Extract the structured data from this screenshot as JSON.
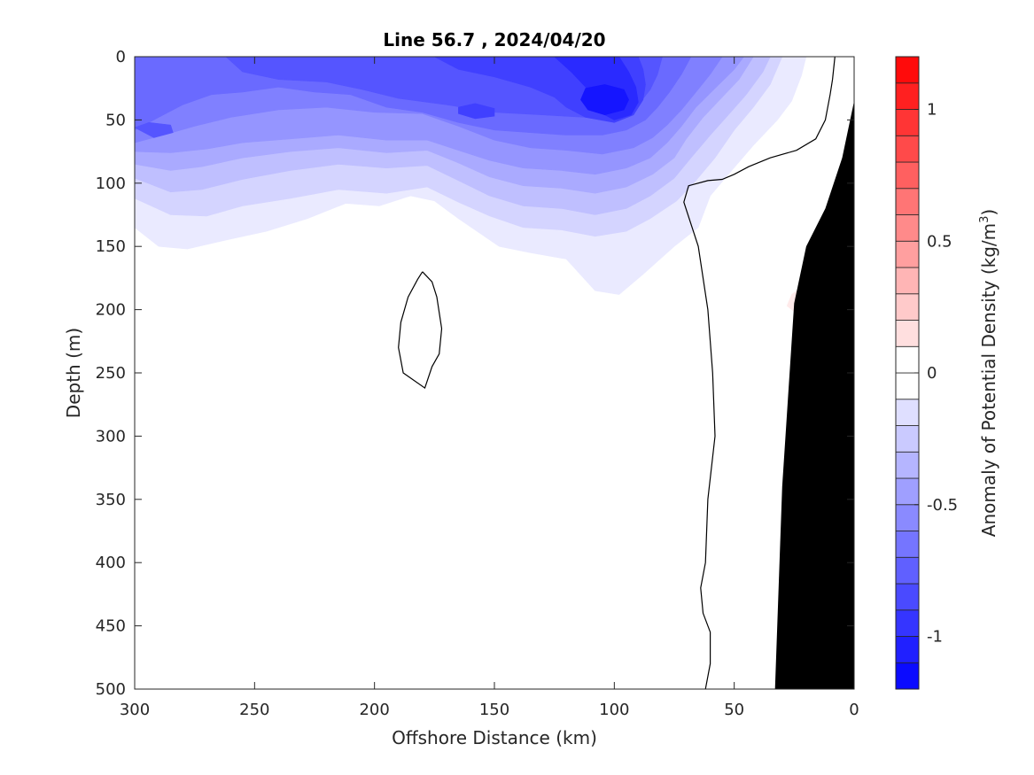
{
  "chart_data": {
    "type": "heatmap",
    "subtype": "filled-contour-section",
    "title": "Line 56.7 , 2024/04/20",
    "xlabel": "Offshore Distance (km)",
    "ylabel": "Depth (m)",
    "x_direction": "reversed",
    "y_direction": "reversed",
    "xlim": [
      0,
      300
    ],
    "ylim": [
      0,
      500
    ],
    "x_ticks": [
      300,
      250,
      200,
      150,
      100,
      50,
      0
    ],
    "y_ticks": [
      0,
      50,
      100,
      150,
      200,
      250,
      300,
      350,
      400,
      450,
      500
    ],
    "grid": false,
    "colorbar": {
      "label": "Anomaly of Potential Density (kg/m³)",
      "label_main": "Anomaly of Potential Density (kg/m",
      "label_sup": "3",
      "label_tail": ")",
      "range": [
        -1.2,
        1.2
      ],
      "step": 0.1,
      "tick_values": [
        1,
        0.5,
        0,
        -0.5,
        -1
      ],
      "tick_labels": [
        "1",
        "0.5",
        "0",
        "-0.5",
        "-1"
      ],
      "colormap": "blue-white-red"
    },
    "zero_contour_line": true,
    "bathymetry": {
      "color": "#000000",
      "points": [
        [
          0,
          35
        ],
        [
          5,
          80
        ],
        [
          12,
          120
        ],
        [
          20,
          150
        ],
        [
          25,
          195
        ],
        [
          30,
          340
        ],
        [
          33,
          500
        ],
        [
          0,
          500
        ]
      ]
    },
    "anomaly_levels": [
      {
        "level": -0.1,
        "outline": [
          [
            300,
            0
          ],
          [
            300,
            135
          ],
          [
            290,
            150
          ],
          [
            278,
            152
          ],
          [
            262,
            145
          ],
          [
            245,
            138
          ],
          [
            228,
            128
          ],
          [
            212,
            116
          ],
          [
            198,
            118
          ],
          [
            185,
            110
          ],
          [
            175,
            114
          ],
          [
            165,
            128
          ],
          [
            148,
            150
          ],
          [
            135,
            155
          ],
          [
            120,
            160
          ],
          [
            108,
            185
          ],
          [
            98,
            188
          ],
          [
            88,
            172
          ],
          [
            75,
            150
          ],
          [
            65,
            135
          ],
          [
            60,
            110
          ],
          [
            52,
            92
          ],
          [
            42,
            70
          ],
          [
            32,
            50
          ],
          [
            26,
            35
          ],
          [
            22,
            15
          ],
          [
            20,
            0
          ]
        ]
      },
      {
        "level": -0.2,
        "outline": [
          [
            300,
            0
          ],
          [
            300,
            112
          ],
          [
            285,
            125
          ],
          [
            270,
            126
          ],
          [
            255,
            118
          ],
          [
            235,
            112
          ],
          [
            215,
            105
          ],
          [
            195,
            108
          ],
          [
            178,
            103
          ],
          [
            165,
            115
          ],
          [
            152,
            126
          ],
          [
            138,
            135
          ],
          [
            122,
            137
          ],
          [
            108,
            142
          ],
          [
            95,
            138
          ],
          [
            85,
            128
          ],
          [
            74,
            114
          ],
          [
            66,
            98
          ],
          [
            58,
            80
          ],
          [
            50,
            58
          ],
          [
            42,
            40
          ],
          [
            35,
            22
          ],
          [
            30,
            0
          ]
        ]
      },
      {
        "level": -0.3,
        "outline": [
          [
            300,
            0
          ],
          [
            300,
            96
          ],
          [
            285,
            107
          ],
          [
            272,
            105
          ],
          [
            255,
            97
          ],
          [
            235,
            90
          ],
          [
            215,
            85
          ],
          [
            195,
            88
          ],
          [
            178,
            86
          ],
          [
            165,
            98
          ],
          [
            152,
            110
          ],
          [
            138,
            118
          ],
          [
            122,
            120
          ],
          [
            108,
            125
          ],
          [
            95,
            120
          ],
          [
            85,
            110
          ],
          [
            75,
            96
          ],
          [
            68,
            80
          ],
          [
            60,
            62
          ],
          [
            52,
            45
          ],
          [
            45,
            30
          ],
          [
            38,
            12
          ],
          [
            35,
            0
          ]
        ]
      },
      {
        "level": -0.4,
        "outline": [
          [
            300,
            0
          ],
          [
            300,
            85
          ],
          [
            285,
            90
          ],
          [
            272,
            87
          ],
          [
            255,
            80
          ],
          [
            235,
            75
          ],
          [
            215,
            72
          ],
          [
            195,
            76
          ],
          [
            178,
            74
          ],
          [
            165,
            84
          ],
          [
            152,
            95
          ],
          [
            138,
            102
          ],
          [
            122,
            104
          ],
          [
            108,
            108
          ],
          [
            95,
            103
          ],
          [
            84,
            93
          ],
          [
            75,
            80
          ],
          [
            70,
            65
          ],
          [
            63,
            48
          ],
          [
            55,
            32
          ],
          [
            48,
            18
          ],
          [
            42,
            0
          ]
        ]
      },
      {
        "level": -0.5,
        "outline": [
          [
            300,
            0
          ],
          [
            300,
            75
          ],
          [
            285,
            76
          ],
          [
            270,
            73
          ],
          [
            255,
            68
          ],
          [
            235,
            65
          ],
          [
            215,
            62
          ],
          [
            195,
            66
          ],
          [
            178,
            66
          ],
          [
            165,
            74
          ],
          [
            152,
            82
          ],
          [
            138,
            88
          ],
          [
            122,
            90
          ],
          [
            108,
            93
          ],
          [
            95,
            88
          ],
          [
            85,
            80
          ],
          [
            78,
            68
          ],
          [
            72,
            55
          ],
          [
            66,
            40
          ],
          [
            58,
            25
          ],
          [
            50,
            10
          ],
          [
            46,
            0
          ]
        ]
      },
      {
        "level": -0.6,
        "outline": [
          [
            300,
            0
          ],
          [
            300,
            68
          ],
          [
            288,
            62
          ],
          [
            275,
            55
          ],
          [
            260,
            48
          ],
          [
            240,
            42
          ],
          [
            220,
            40
          ],
          [
            200,
            44
          ],
          [
            180,
            45
          ],
          [
            165,
            55
          ],
          [
            150,
            66
          ],
          [
            135,
            72
          ],
          [
            120,
            74
          ],
          [
            105,
            77
          ],
          [
            92,
            72
          ],
          [
            84,
            64
          ],
          [
            78,
            54
          ],
          [
            72,
            42
          ],
          [
            66,
            28
          ],
          [
            60,
            14
          ],
          [
            55,
            0
          ]
        ]
      },
      {
        "level": -0.7,
        "outline": [
          [
            300,
            0
          ],
          [
            300,
            58
          ],
          [
            290,
            48
          ],
          [
            280,
            38
          ],
          [
            268,
            30
          ],
          [
            255,
            28
          ],
          [
            240,
            24
          ],
          [
            225,
            28
          ],
          [
            210,
            30
          ],
          [
            195,
            40
          ],
          [
            180,
            44
          ],
          [
            165,
            52
          ],
          [
            150,
            58
          ],
          [
            135,
            60
          ],
          [
            120,
            62
          ],
          [
            105,
            62
          ],
          [
            95,
            58
          ],
          [
            87,
            50
          ],
          [
            82,
            40
          ],
          [
            77,
            28
          ],
          [
            72,
            14
          ],
          [
            68,
            0
          ]
        ]
      },
      {
        "level": -0.8,
        "outline": [
          [
            262,
            0
          ],
          [
            255,
            12
          ],
          [
            240,
            18
          ],
          [
            220,
            20
          ],
          [
            205,
            26
          ],
          [
            190,
            33
          ],
          [
            170,
            38
          ],
          [
            150,
            44
          ],
          [
            130,
            46
          ],
          [
            112,
            48
          ],
          [
            98,
            45
          ],
          [
            90,
            38
          ],
          [
            85,
            26
          ],
          [
            82,
            14
          ],
          [
            80,
            0
          ]
        ]
      },
      {
        "level": -0.9,
        "outline": [
          [
            175,
            0
          ],
          [
            165,
            10
          ],
          [
            150,
            16
          ],
          [
            135,
            24
          ],
          [
            125,
            32
          ],
          [
            120,
            40
          ],
          [
            112,
            48
          ],
          [
            100,
            52
          ],
          [
            92,
            46
          ],
          [
            88,
            34
          ],
          [
            87,
            22
          ],
          [
            88,
            10
          ],
          [
            90,
            0
          ]
        ]
      },
      {
        "level": -1.0,
        "outline": [
          [
            125,
            0
          ],
          [
            118,
            12
          ],
          [
            112,
            24
          ],
          [
            108,
            34
          ],
          [
            106,
            44
          ],
          [
            100,
            50
          ],
          [
            93,
            46
          ],
          [
            90,
            36
          ],
          [
            91,
            24
          ],
          [
            94,
            12
          ],
          [
            98,
            0
          ]
        ]
      },
      {
        "level": -1.1,
        "outline": [
          [
            112,
            25
          ],
          [
            104,
            22
          ],
          [
            96,
            26
          ],
          [
            94,
            34
          ],
          [
            96,
            42
          ],
          [
            104,
            46
          ],
          [
            111,
            42
          ],
          [
            114,
            34
          ]
        ]
      },
      {
        "level": -0.8,
        "outline": [
          [
            300,
            56
          ],
          [
            294,
            52
          ],
          [
            285,
            54
          ],
          [
            284,
            60
          ],
          [
            292,
            64
          ]
        ]
      },
      {
        "level": -0.9,
        "outline": [
          [
            165,
            40
          ],
          [
            158,
            37
          ],
          [
            150,
            41
          ],
          [
            150,
            47
          ],
          [
            158,
            49
          ],
          [
            165,
            45
          ]
        ]
      },
      {
        "level": 0.1,
        "outline": [
          [
            26,
            188
          ],
          [
            22,
            182
          ],
          [
            19,
            190
          ],
          [
            20,
            200
          ],
          [
            24,
            203
          ],
          [
            28,
            197
          ]
        ]
      }
    ],
    "zero_contours": [
      {
        "points": [
          [
            8,
            0
          ],
          [
            9,
            18
          ],
          [
            10,
            30
          ],
          [
            12,
            50
          ],
          [
            16,
            65
          ],
          [
            24,
            74
          ],
          [
            35,
            80
          ],
          [
            44,
            87
          ],
          [
            50,
            93
          ],
          [
            55,
            97
          ],
          [
            61,
            98
          ],
          [
            69,
            102
          ],
          [
            71,
            115
          ],
          [
            65,
            150
          ],
          [
            61,
            200
          ],
          [
            59,
            250
          ],
          [
            58,
            300
          ],
          [
            61,
            350
          ],
          [
            62,
            400
          ],
          [
            64,
            420
          ],
          [
            63,
            440
          ],
          [
            60,
            455
          ],
          [
            60,
            480
          ],
          [
            62,
            500
          ]
        ]
      },
      {
        "points": [
          [
            180,
            170
          ],
          [
            176,
            178
          ],
          [
            174,
            190
          ],
          [
            172,
            215
          ],
          [
            173,
            235
          ],
          [
            176,
            245
          ],
          [
            179,
            262
          ],
          [
            188,
            250
          ],
          [
            190,
            230
          ],
          [
            189,
            210
          ],
          [
            186,
            190
          ],
          [
            182,
            176
          ]
        ]
      }
    ]
  }
}
